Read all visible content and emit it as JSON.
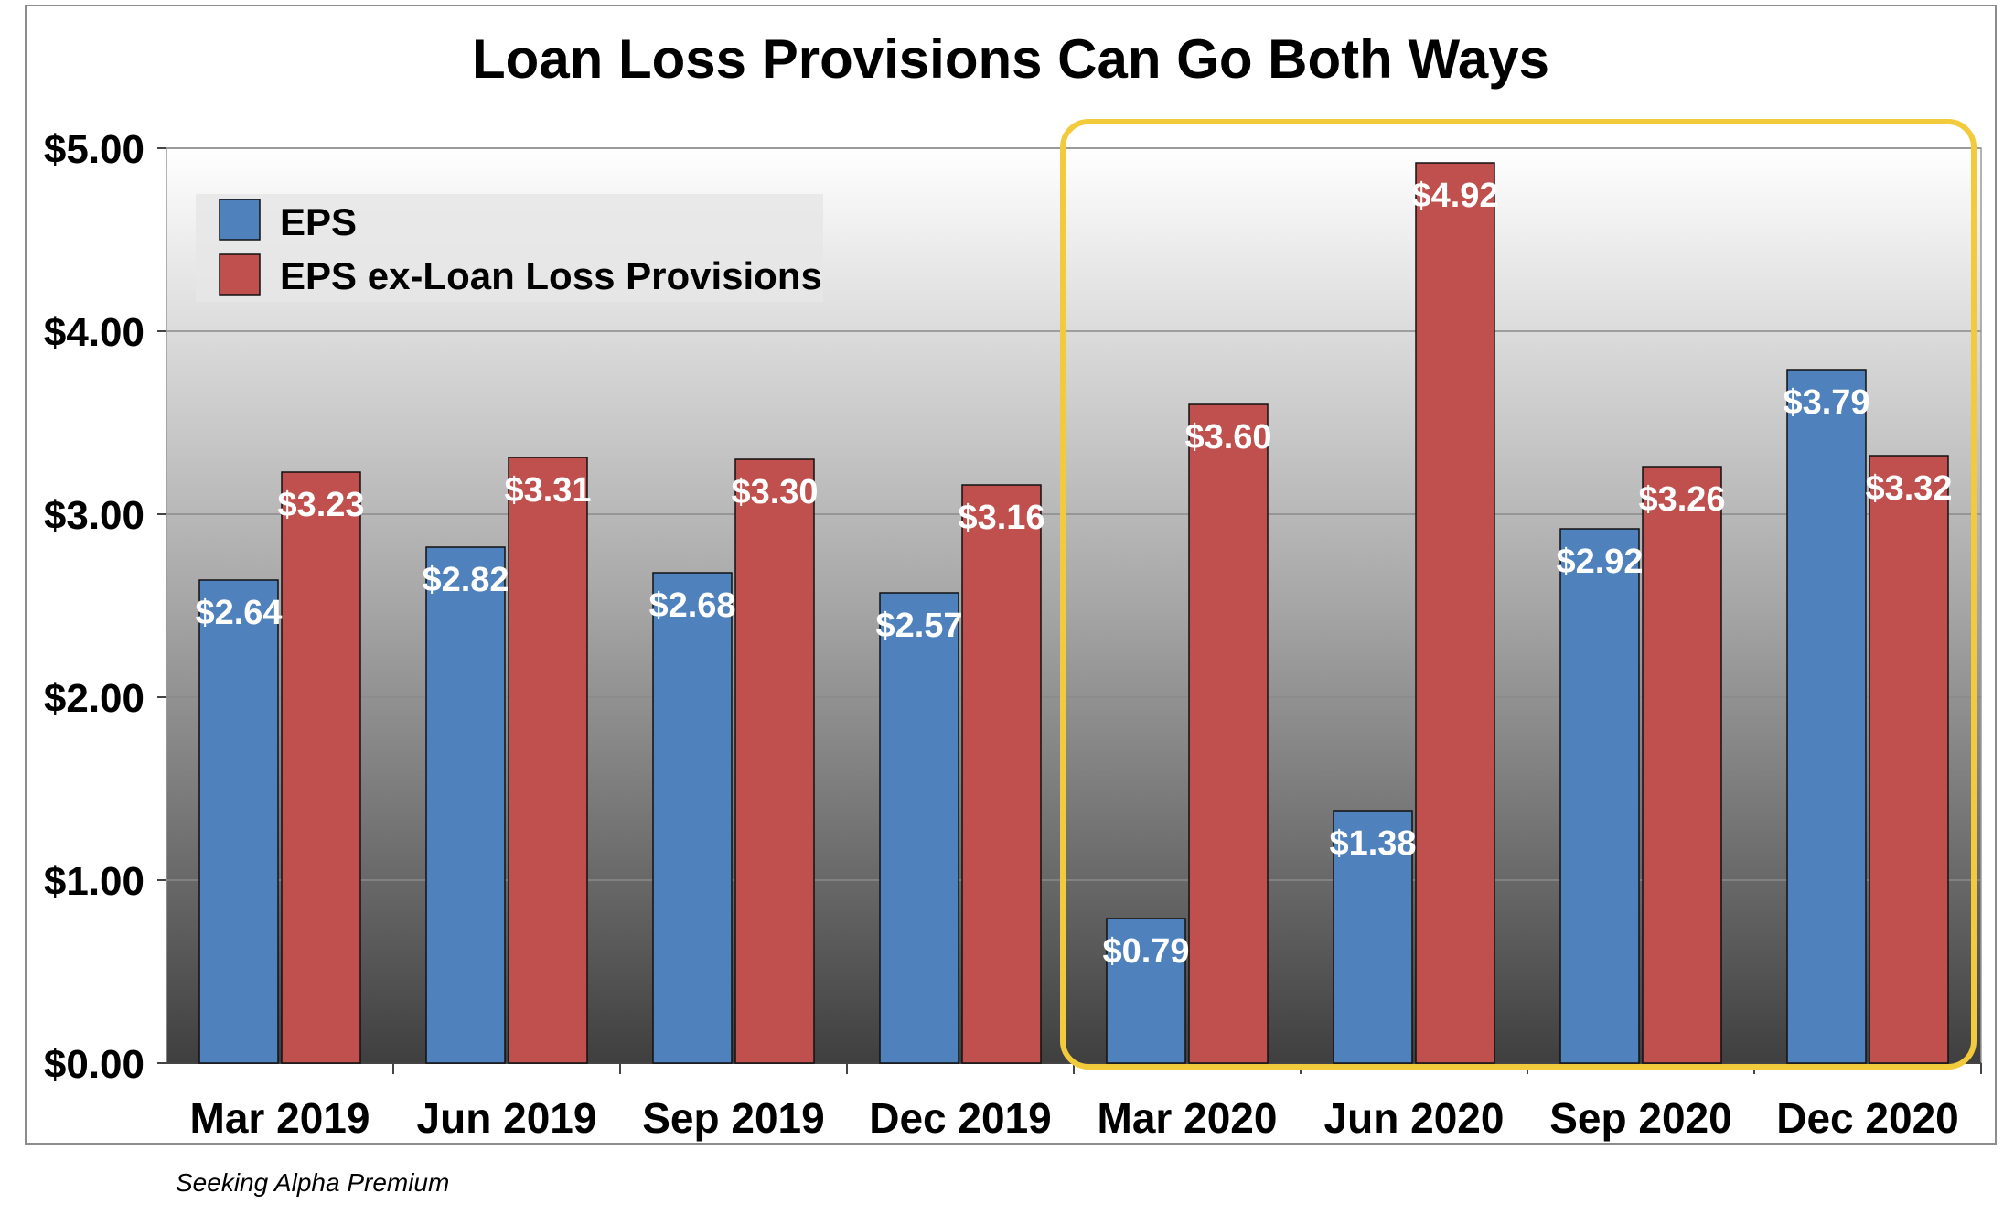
{
  "chart_data": {
    "type": "bar",
    "title": "Loan Loss Provisions Can Go Both Ways",
    "categories": [
      "Mar 2019",
      "Jun 2019",
      "Sep 2019",
      "Dec 2019",
      "Mar 2020",
      "Jun 2020",
      "Sep 2020",
      "Dec 2020"
    ],
    "series": [
      {
        "name": "EPS",
        "color": "#4f81bd",
        "values": [
          2.64,
          2.82,
          2.68,
          2.57,
          0.79,
          1.38,
          2.92,
          3.79
        ],
        "labels": [
          "$2.64",
          "$2.82",
          "$2.68",
          "$2.57",
          "$0.79",
          "$1.38",
          "$2.92",
          "$3.79"
        ]
      },
      {
        "name": "EPS ex-Loan Loss Provisions",
        "color": "#c0504d",
        "values": [
          3.23,
          3.31,
          3.3,
          3.16,
          3.6,
          4.92,
          3.26,
          3.32
        ],
        "labels": [
          "$3.23",
          "$3.31",
          "$3.30",
          "$3.16",
          "$3.60",
          "$4.92",
          "$3.26",
          "$3.32"
        ]
      }
    ],
    "yticks": [
      "$0.00",
      "$1.00",
      "$2.00",
      "$3.00",
      "$4.00",
      "$5.00"
    ],
    "ylim": [
      0,
      5
    ],
    "grid": true,
    "legend_position": "top-left",
    "highlight": {
      "from_category": "Mar 2020",
      "to_category": "Dec 2020",
      "color": "#f2cb3c"
    }
  },
  "source": "Seeking Alpha Premium"
}
